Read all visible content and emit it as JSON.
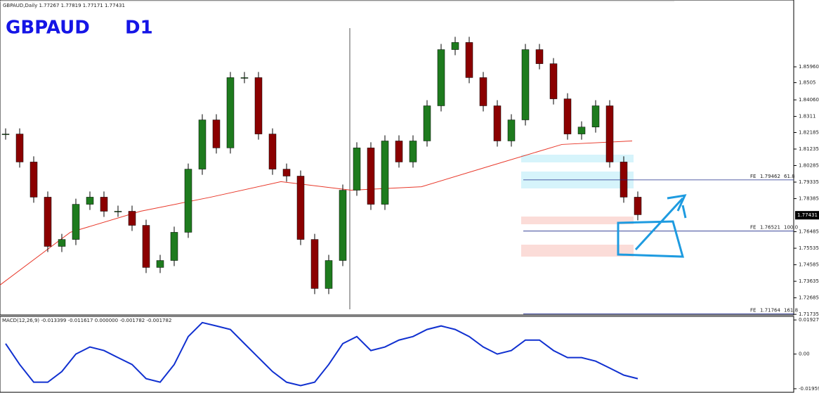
{
  "chart_data": {
    "type": "candlestick",
    "header": "GBPAUD,Daily  1.77267 1.77819 1.77171 1.77431",
    "title": "GBPAUD",
    "timeframe": "D1",
    "up_color": "#1e7b1e",
    "down_color": "#8b0000",
    "values": [
      1.821,
      1.8049,
      1.7847,
      1.7564,
      1.7604,
      1.7806,
      1.7847,
      1.7766,
      1.7766,
      1.7685,
      1.7443,
      1.7483,
      1.7645,
      1.8008,
      1.8291,
      1.813,
      1.8534,
      1.8534,
      1.821,
      1.8008,
      1.7968,
      1.7604,
      1.7322,
      1.7483,
      1.7887,
      1.813,
      1.7806,
      1.817,
      1.8049,
      1.817,
      1.8372,
      1.8695,
      1.8736,
      1.8534,
      1.8372,
      1.817,
      1.8291,
      1.8695,
      1.8614,
      1.8412,
      1.821,
      1.825,
      1.8372,
      1.8049,
      1.7847,
      1.7746
    ],
    "ma_values": [
      1.7342,
      1.7645,
      1.7766,
      1.7847,
      1.7936,
      1.7887,
      1.7907,
      1.8029,
      1.815,
      1.817
    ],
    "ma_color": "#e8382a",
    "ylim": [
      1.717,
      1.898
    ],
    "yticks": [
      {
        "value": 1.8596,
        "label": "1.85960"
      },
      1.8505,
      {
        "value": 1.8406,
        "label": "1.84060"
      },
      1.8311,
      1.82185,
      1.81235,
      1.80285,
      1.79335,
      1.78385,
      1.76485,
      1.75535,
      1.74585,
      1.73635,
      1.72685,
      1.71735
    ],
    "last_price": 1.77431,
    "fibo_levels": [
      {
        "name": "FE",
        "price": 1.79462,
        "level": 61.8
      },
      {
        "name": "FE",
        "price": 1.76521,
        "level": {
          "value": 100,
          "label": "100.0"
        }
      },
      {
        "name": "FE",
        "price": 1.71764,
        "level": 161.8
      }
    ],
    "macd": {
      "header": "MACD(12,26,9) -0.013399 -0.011617 0.000000 -0.001782 -0.001782",
      "color": "#1030d0",
      "values": [
        0.0059,
        -0.0059,
        -0.0159,
        -0.0159,
        -0.0099,
        0,
        0.004,
        0.002,
        -0.002,
        -0.0059,
        -0.0139,
        -0.0159,
        -0.0059,
        0.0099,
        0.0178,
        0.0159,
        0.0139,
        0.0059,
        -0.002,
        -0.0099,
        -0.0159,
        -0.0178,
        -0.0159,
        -0.0059,
        0.0059,
        0.0099,
        0.002,
        0.004,
        0.0079,
        0.0099,
        0.0139,
        0.0159,
        0.0139,
        0.0099,
        0.004,
        0,
        0.002,
        0.0079,
        0.0079,
        0.002,
        -0.002,
        -0.002,
        -0.004,
        -0.0079,
        -0.0119,
        -0.0139
      ],
      "ylim": [
        -0.022,
        0.0213
      ],
      "yticks": [
        0.019273,
        {
          "value": 0,
          "label": "0.00"
        },
        -0.019591
      ]
    }
  }
}
